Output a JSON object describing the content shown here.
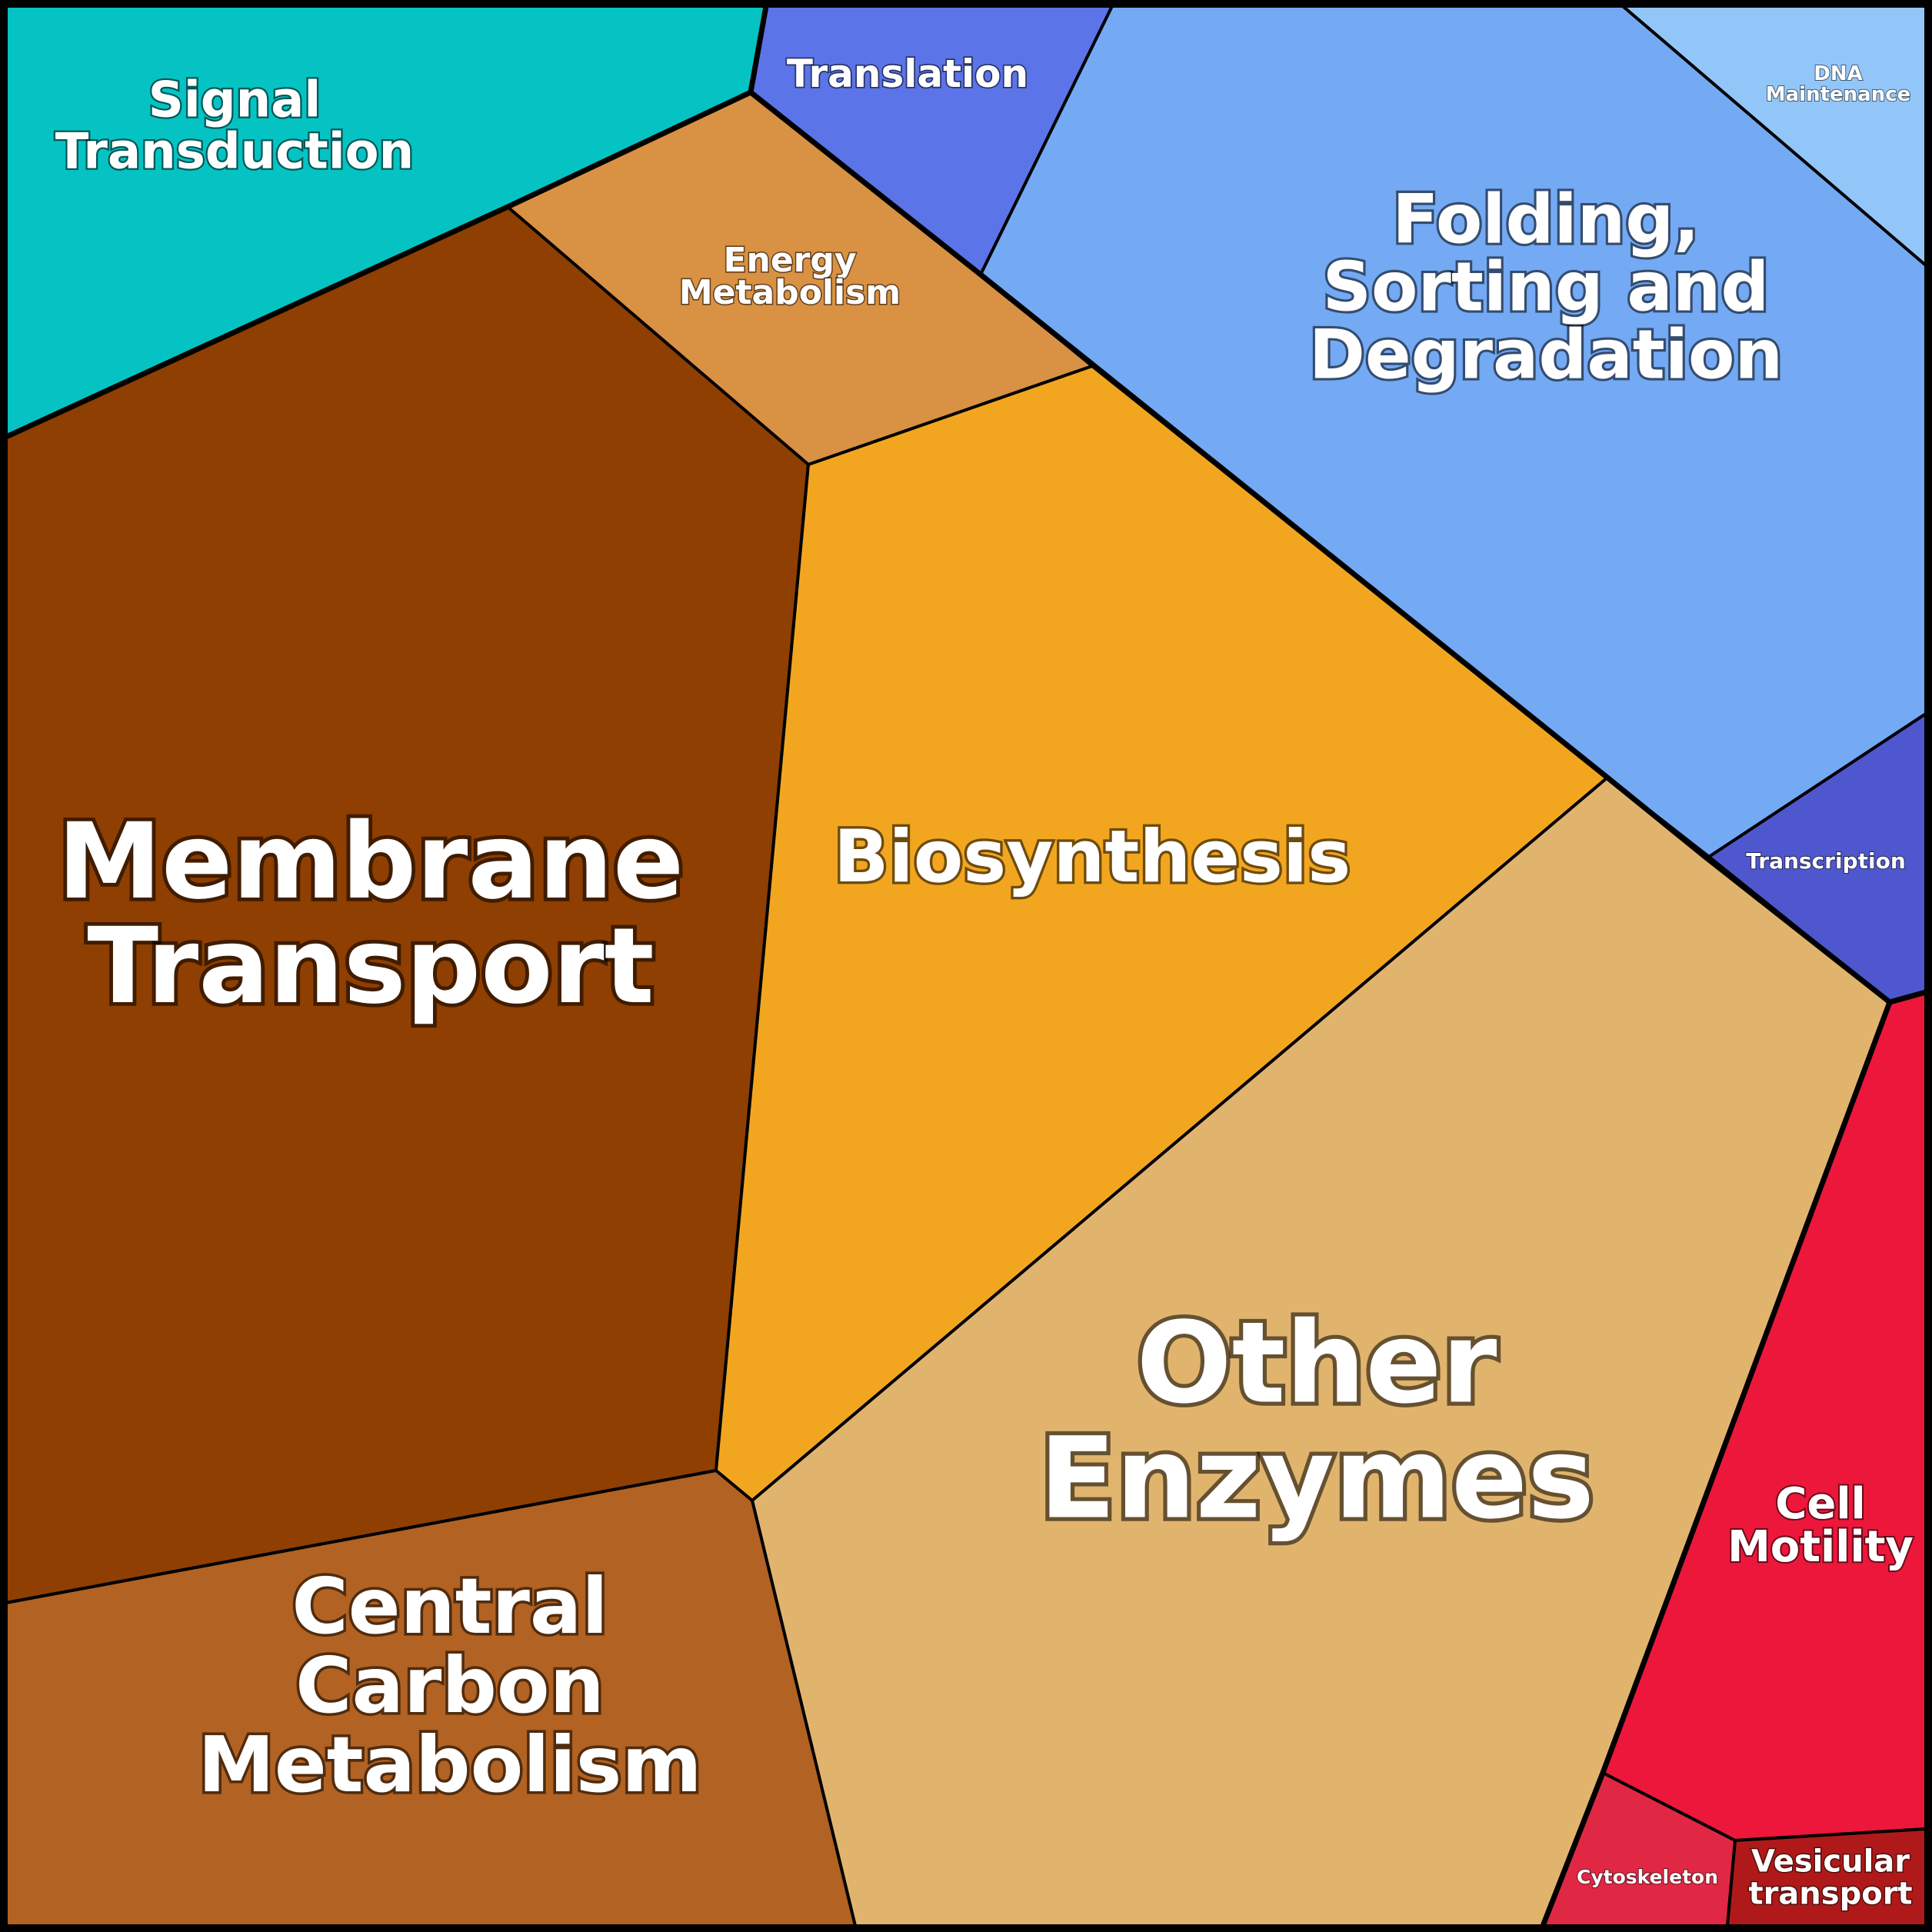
{
  "regions": [
    {
      "id": "signal-transduction",
      "lines": [
        "Signal",
        "Transduction"
      ],
      "color": "#05C3C3"
    },
    {
      "id": "translation",
      "lines": [
        "Translation"
      ],
      "color": "#5B74E8"
    },
    {
      "id": "folding-sorting-degradation",
      "lines": [
        "Folding,",
        "Sorting and",
        "Degradation"
      ],
      "color": "#74A9F4"
    },
    {
      "id": "dna-maintenance",
      "lines": [
        "DNA",
        "Maintenance"
      ],
      "color": "#93C6F8"
    },
    {
      "id": "energy-metabolism",
      "lines": [
        "Energy",
        "Metabolism"
      ],
      "color": "#D99143"
    },
    {
      "id": "membrane-transport",
      "lines": [
        "Membrane",
        "Transport"
      ],
      "color": "#8E3F01"
    },
    {
      "id": "biosynthesis",
      "lines": [
        "Biosynthesis"
      ],
      "color": "#F2A620"
    },
    {
      "id": "transcription",
      "lines": [
        "Transcription"
      ],
      "color": "#4E57CD"
    },
    {
      "id": "other-enzymes",
      "lines": [
        "Other",
        "Enzymes"
      ],
      "color": "#E1B46E"
    },
    {
      "id": "central-carbon-metabolism",
      "lines": [
        "Central",
        "Carbon",
        "Metabolism"
      ],
      "color": "#B26222"
    },
    {
      "id": "cell-motility",
      "lines": [
        "Cell",
        "Motility"
      ],
      "color": "#EC173A"
    },
    {
      "id": "cytoskeleton",
      "lines": [
        "Cytoskeleton"
      ],
      "color": "#E02845"
    },
    {
      "id": "vesicular-transport",
      "lines": [
        "Vesicular",
        "transport"
      ],
      "color": "#AF1919"
    }
  ]
}
